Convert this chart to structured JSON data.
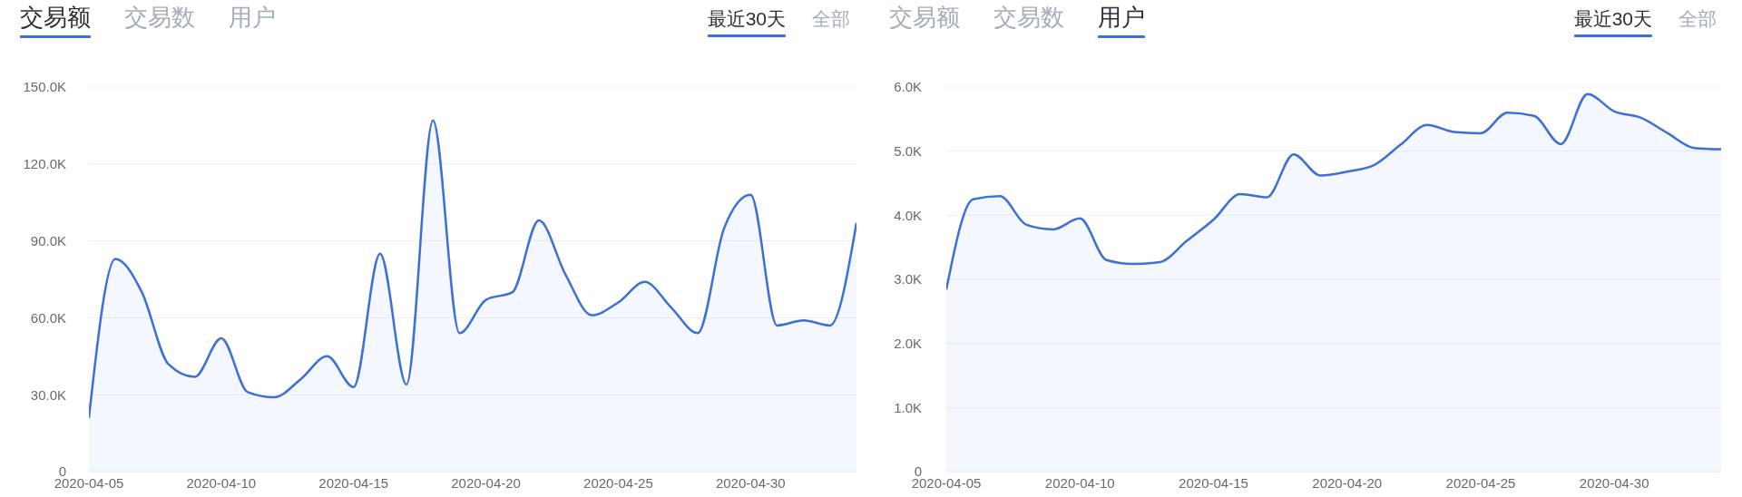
{
  "chart_data": [
    {
      "type": "area",
      "x": [
        "2020-04-05",
        "2020-04-06",
        "2020-04-07",
        "2020-04-08",
        "2020-04-09",
        "2020-04-10",
        "2020-04-11",
        "2020-04-12",
        "2020-04-13",
        "2020-04-14",
        "2020-04-15",
        "2020-04-16",
        "2020-04-17",
        "2020-04-18",
        "2020-04-19",
        "2020-04-20",
        "2020-04-21",
        "2020-04-22",
        "2020-04-23",
        "2020-04-24",
        "2020-04-25",
        "2020-04-26",
        "2020-04-27",
        "2020-04-28",
        "2020-04-29",
        "2020-04-30",
        "2020-05-01",
        "2020-05-02",
        "2020-05-03",
        "2020-05-04"
      ],
      "values": [
        21000,
        83000,
        70000,
        42000,
        37000,
        52000,
        31000,
        29000,
        36000,
        45000,
        33000,
        85000,
        34000,
        137000,
        54000,
        67000,
        70000,
        98000,
        77000,
        61000,
        66000,
        74000,
        64000,
        54000,
        95000,
        108000,
        57000,
        59000,
        57000,
        97000
      ],
      "color": "#3d6fd6",
      "xlim": [
        "2020-04-05",
        "2020-05-04"
      ],
      "xticks": [
        "2020-04-05",
        "2020-04-10",
        "2020-04-15",
        "2020-04-20",
        "2020-04-25",
        "2020-04-30"
      ],
      "ylim": [
        0,
        150000
      ],
      "yticks": [
        0,
        {
          "value": 30000,
          "label": "30.0K"
        },
        {
          "value": 60000,
          "label": "60.0K"
        },
        {
          "value": 90000,
          "label": "90.0K"
        },
        {
          "value": 120000,
          "label": "120.0K"
        },
        {
          "value": 150000,
          "label": "150.0K"
        }
      ],
      "grid": "y",
      "annotations": [
        "交易额",
        "交易数",
        "用户",
        "最近30天",
        "全部"
      ]
    },
    {
      "type": "area",
      "x": [
        "2020-04-05",
        "2020-04-06",
        "2020-04-07",
        "2020-04-08",
        "2020-04-09",
        "2020-04-10",
        "2020-04-11",
        "2020-04-12",
        "2020-04-13",
        "2020-04-14",
        "2020-04-15",
        "2020-04-16",
        "2020-04-17",
        "2020-04-18",
        "2020-04-19",
        "2020-04-20",
        "2020-04-21",
        "2020-04-22",
        "2020-04-23",
        "2020-04-24",
        "2020-04-25",
        "2020-04-26",
        "2020-04-27",
        "2020-04-28",
        "2020-04-29",
        "2020-04-30",
        "2020-05-01",
        "2020-05-02",
        "2020-05-03",
        "2020-05-04"
      ],
      "values": [
        2840,
        4250,
        4300,
        3850,
        3780,
        3950,
        3300,
        3240,
        3270,
        3600,
        3930,
        4330,
        4280,
        4950,
        4620,
        4680,
        4780,
        5100,
        5410,
        5300,
        5280,
        5600,
        5550,
        5110,
        5890,
        5620,
        5520,
        5280,
        5050,
        5030
      ],
      "color": "#3d6fd6",
      "xlim": [
        "2020-04-05",
        "2020-05-04"
      ],
      "xticks": [
        "2020-04-05",
        "2020-04-10",
        "2020-04-15",
        "2020-04-20",
        "2020-04-25",
        "2020-04-30"
      ],
      "ylim": [
        0,
        6000
      ],
      "yticks": [
        0,
        {
          "value": 1000,
          "label": "1.0K"
        },
        {
          "value": 2000,
          "label": "2.0K"
        },
        {
          "value": 3000,
          "label": "3.0K"
        },
        {
          "value": 4000,
          "label": "4.0K"
        },
        {
          "value": 5000,
          "label": "5.0K"
        },
        {
          "value": 6000,
          "label": "6.0K"
        }
      ],
      "grid": "y",
      "annotations": [
        "交易额",
        "交易数",
        "用户",
        "最近30天",
        "全部"
      ]
    }
  ]
}
